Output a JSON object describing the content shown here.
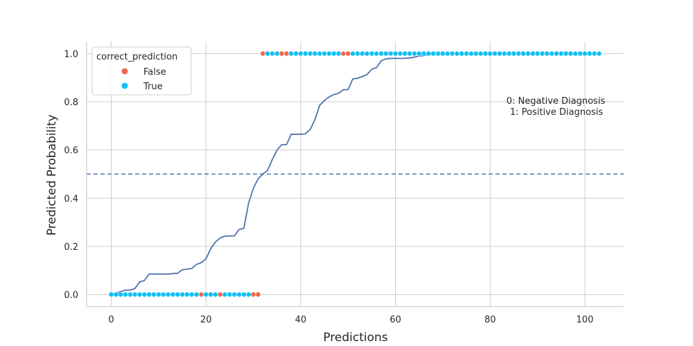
{
  "chart_data": {
    "type": "scatter",
    "xlabel": "Predictions",
    "ylabel": "Predicted Probability",
    "xlim": [
      -5.2,
      108.2
    ],
    "ylim": [
      -0.05,
      1.05
    ],
    "xticks": [
      "0",
      "20",
      "40",
      "60",
      "80",
      "100"
    ],
    "yticks": [
      "0.0",
      "0.2",
      "0.4",
      "0.6",
      "0.8",
      "1.0"
    ],
    "grid": true,
    "threshold": 0.5,
    "legend": {
      "title": "correct_prediction",
      "position": "top-left",
      "entries": [
        {
          "label": "False",
          "color": "#f0684d"
        },
        {
          "label": "True",
          "color": "#12c0f5"
        }
      ]
    },
    "annotation": [
      "0: Negative Diagnosis",
      "1: Positive Diagnosis"
    ],
    "curve": {
      "color": "#4c72b0",
      "values": [
        0.005,
        0.006,
        0.012,
        0.018,
        0.018,
        0.025,
        0.052,
        0.058,
        0.085,
        0.085,
        0.085,
        0.085,
        0.085,
        0.087,
        0.088,
        0.103,
        0.105,
        0.108,
        0.125,
        0.132,
        0.148,
        0.19,
        0.218,
        0.235,
        0.242,
        0.243,
        0.243,
        0.27,
        0.275,
        0.38,
        0.44,
        0.48,
        0.5,
        0.515,
        0.56,
        0.6,
        0.622,
        0.622,
        0.665,
        0.665,
        0.665,
        0.667,
        0.685,
        0.725,
        0.785,
        0.805,
        0.82,
        0.83,
        0.835,
        0.85,
        0.85,
        0.895,
        0.897,
        0.905,
        0.913,
        0.935,
        0.942,
        0.97,
        0.978,
        0.98,
        0.98,
        0.98,
        0.98,
        0.982,
        0.985,
        0.99,
        0.991,
        0.995,
        0.996,
        0.996,
        0.997,
        0.997,
        0.997,
        0.998,
        0.998,
        0.998,
        0.998,
        0.998,
        0.998,
        0.999,
        0.999,
        0.999,
        0.999,
        0.999,
        0.999,
        0.999,
        0.999,
        1.0,
        1.0,
        1.0,
        1.0,
        1.0,
        1.0,
        1.0,
        1.0,
        1.0,
        1.0,
        1.0,
        1.0,
        1.0,
        1.0,
        1.0,
        1.0,
        1.0
      ]
    },
    "series": [
      {
        "name": "False",
        "color": "#f0684d",
        "x": [
          19,
          23,
          30,
          31,
          32,
          36,
          37,
          49,
          50
        ],
        "y": [
          0,
          0,
          0,
          0,
          1,
          1,
          1,
          1,
          1
        ]
      },
      {
        "name": "True",
        "color": "#12c0f5",
        "x": [
          0,
          1,
          2,
          3,
          4,
          5,
          6,
          7,
          8,
          9,
          10,
          11,
          12,
          13,
          14,
          15,
          16,
          17,
          18,
          20,
          21,
          22,
          24,
          25,
          26,
          27,
          28,
          29,
          33,
          34,
          35,
          38,
          39,
          40,
          41,
          42,
          43,
          44,
          45,
          46,
          47,
          48,
          51,
          52,
          53,
          54,
          55,
          56,
          57,
          58,
          59,
          60,
          61,
          62,
          63,
          64,
          65,
          66,
          67,
          68,
          69,
          70,
          71,
          72,
          73,
          74,
          75,
          76,
          77,
          78,
          79,
          80,
          81,
          82,
          83,
          84,
          85,
          86,
          87,
          88,
          89,
          90,
          91,
          92,
          93,
          94,
          95,
          96,
          97,
          98,
          99,
          100,
          101,
          102,
          103
        ],
        "y": [
          0,
          0,
          0,
          0,
          0,
          0,
          0,
          0,
          0,
          0,
          0,
          0,
          0,
          0,
          0,
          0,
          0,
          0,
          0,
          0,
          0,
          0,
          0,
          0,
          0,
          0,
          0,
          0,
          1,
          1,
          1,
          1,
          1,
          1,
          1,
          1,
          1,
          1,
          1,
          1,
          1,
          1,
          1,
          1,
          1,
          1,
          1,
          1,
          1,
          1,
          1,
          1,
          1,
          1,
          1,
          1,
          1,
          1,
          1,
          1,
          1,
          1,
          1,
          1,
          1,
          1,
          1,
          1,
          1,
          1,
          1,
          1,
          1,
          1,
          1,
          1,
          1,
          1,
          1,
          1,
          1,
          1,
          1,
          1,
          1,
          1,
          1,
          1,
          1,
          1,
          1,
          1,
          1,
          1,
          1
        ]
      }
    ]
  }
}
